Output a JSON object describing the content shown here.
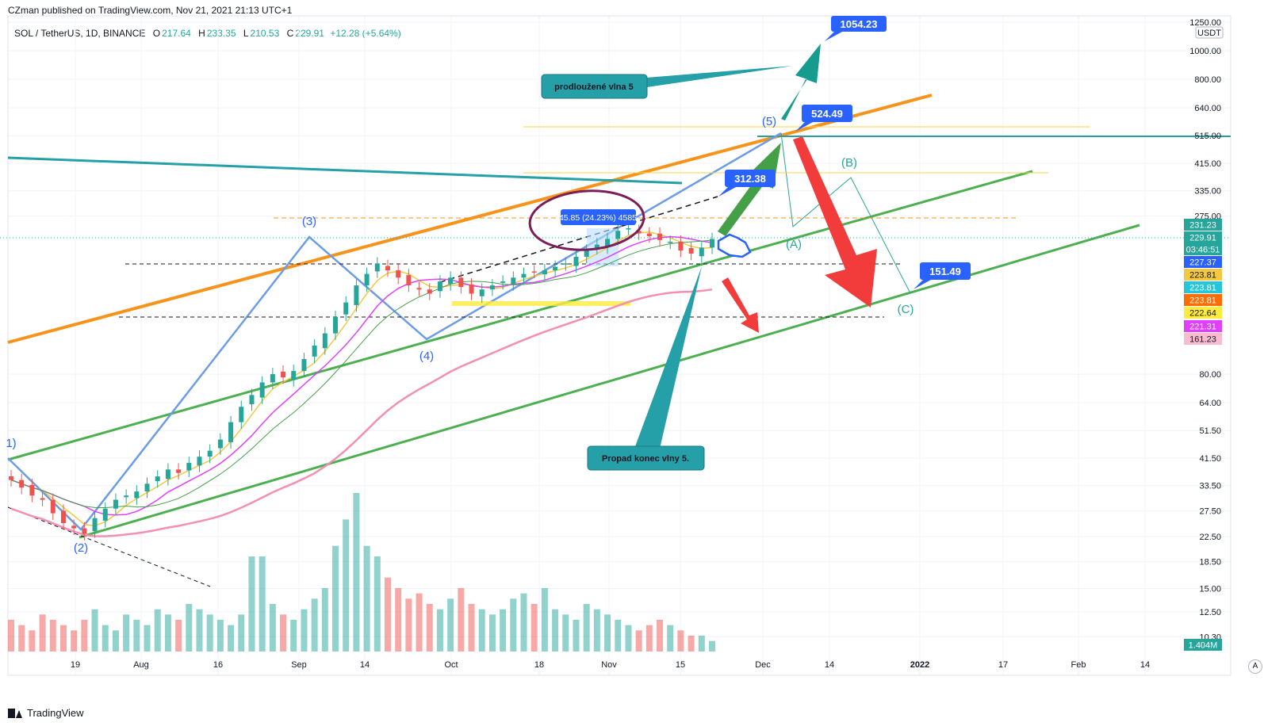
{
  "header": {
    "text": "CZman published on TradingView.com, Nov 21, 2021 21:13 UTC+1"
  },
  "legend": {
    "symbol": "SOL / TetherUS, 1D, BINANCE",
    "open_label": "O",
    "open": "217.64",
    "high_label": "H",
    "high": "233.35",
    "low_label": "L",
    "low": "210.53",
    "close_label": "C",
    "close": "229.91",
    "change": "+12.28 (+5.64%)"
  },
  "footer": {
    "brand": "TradingView"
  },
  "colors": {
    "up": "#26a69a",
    "down": "#ef5350",
    "orange": "#f7931a",
    "green_channel": "#4caf50",
    "blue_wave": "#6c9be8",
    "teal": "#26a0a8",
    "pink_ma": "#f48fb1",
    "magenta_ma": "#e040fb",
    "yellow_ma": "#f5c842",
    "grid": "#f0f3fa",
    "label_blue": "#2962ff",
    "red_arrow": "#f23c3c"
  },
  "chart_data": {
    "type": "candlestick",
    "x_axis": {
      "labels": [
        "19",
        "Aug",
        "16",
        "Sep",
        "14",
        "Oct",
        "18",
        "Nov",
        "15",
        "Dec",
        "14",
        "2022",
        "17",
        "Feb",
        "14"
      ]
    },
    "y_axis": {
      "scale": "log",
      "currency": "USDT",
      "tick_labels": [
        "1250.00",
        "1000.00",
        "800.00",
        "640.00",
        "515.00",
        "415.00",
        "335.00",
        "275.00",
        "80.00",
        "64.00",
        "51.50",
        "41.50",
        "33.50",
        "27.50",
        "22.50",
        "18.50",
        "15.00",
        "12.50",
        "10.30"
      ]
    },
    "price_badges": [
      {
        "text": "231.23",
        "color": "#26a69a",
        "fg": "#ffffff"
      },
      {
        "text": "229.91",
        "color": "#26a69a",
        "fg": "#ffffff"
      },
      {
        "text": "03:46:51",
        "color": "#26a69a",
        "fg": "#ffffff"
      },
      {
        "text": "227.37",
        "color": "#2962ff",
        "fg": "#ffffff"
      },
      {
        "text": "223.81",
        "color": "#f5c842",
        "fg": "#131722"
      },
      {
        "text": "223.81",
        "color": "#26c6da",
        "fg": "#ffffff"
      },
      {
        "text": "223.81",
        "color": "#ff6d00",
        "fg": "#ffffff"
      },
      {
        "text": "222.64",
        "color": "#ffeb3b",
        "fg": "#131722"
      },
      {
        "text": "221.31",
        "color": "#e040fb",
        "fg": "#ffffff"
      },
      {
        "text": "161.23",
        "color": "#f8bbd0",
        "fg": "#131722"
      }
    ],
    "volume_badge": "1.404M",
    "wave_labels": [
      "1)",
      "(2)",
      "(3)",
      "(4)",
      "(5)",
      "(A)",
      "(B)",
      "(C)"
    ],
    "price_targets": [
      "1054.23",
      "524.49",
      "312.38",
      "151.49"
    ],
    "measure_label": "45.85 (24.23%) 4585",
    "callouts": [
      "prodloužené vlna 5",
      "Propad konec vlny 5."
    ],
    "candles_approx_close": [
      35,
      33,
      31,
      30,
      27,
      25,
      24,
      23,
      26,
      28,
      30,
      31,
      32,
      34,
      36,
      38,
      37,
      40,
      42,
      44,
      48,
      55,
      62,
      68,
      75,
      80,
      78,
      82,
      90,
      100,
      110,
      125,
      140,
      160,
      175,
      190,
      180,
      170,
      160,
      155,
      150,
      165,
      170,
      158,
      150,
      155,
      160,
      165,
      170,
      175,
      178,
      180,
      185,
      190,
      200,
      210,
      220,
      230,
      245,
      250,
      240,
      235,
      228,
      225,
      210,
      205,
      215,
      229.91
    ],
    "volume_approx": [
      6,
      5,
      4,
      7,
      6,
      5,
      4,
      6,
      8,
      5,
      4,
      7,
      6,
      5,
      8,
      7,
      6,
      9,
      8,
      7,
      6,
      5,
      7,
      18,
      18,
      9,
      7,
      6,
      8,
      10,
      12,
      20,
      25,
      30,
      20,
      18,
      14,
      12,
      10,
      11,
      9,
      8,
      10,
      12,
      9,
      8,
      7,
      8,
      10,
      11,
      9,
      12,
      8,
      7,
      6,
      9,
      8,
      7,
      6,
      5,
      4,
      5,
      6,
      5,
      4,
      3,
      3,
      2
    ]
  }
}
